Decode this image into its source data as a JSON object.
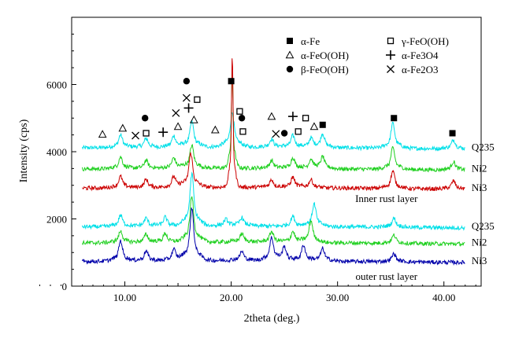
{
  "chart_data": {
    "type": "line",
    "title": "",
    "xlabel": "2theta (deg.)",
    "ylabel": "Intensity (cps)",
    "xlim": [
      5,
      43.5
    ],
    "ylim": [
      0,
      8000
    ],
    "x_ticks": [
      10,
      20,
      30,
      40
    ],
    "x_tick_labels": [
      "10.00",
      "20.00",
      "30.00",
      "40.00"
    ],
    "y_ticks": [
      0,
      2000,
      4000,
      6000
    ],
    "y_tick_labels": [
      "0",
      "2000",
      "4000",
      "6000"
    ],
    "grid": false,
    "legend_position": "top-right",
    "legend": [
      {
        "symbol": "filled-square",
        "label": "α-Fe"
      },
      {
        "symbol": "open-triangle",
        "label": "α-FeO(OH)"
      },
      {
        "symbol": "filled-circle",
        "label": "β-FeO(OH)"
      },
      {
        "symbol": "open-square",
        "label": "γ-FeO(OH)"
      },
      {
        "symbol": "plus",
        "label": "α-Fe3O4"
      },
      {
        "symbol": "cross",
        "label": "α-Fe2O3"
      }
    ],
    "group_labels": [
      {
        "text": "Inner rust layer",
        "x": 34.6,
        "y": 2620
      },
      {
        "text": "outer rust layer",
        "x": 34.6,
        "y": 300
      }
    ],
    "series": [
      {
        "name": "Q235",
        "layer": "inner",
        "color": "#00e0e8",
        "baseline": 4150,
        "peaks": [
          [
            9.6,
            280
          ],
          [
            12.0,
            200
          ],
          [
            14.6,
            250
          ],
          [
            16.3,
            560
          ],
          [
            20.1,
            750
          ],
          [
            23.8,
            180
          ],
          [
            25.8,
            260
          ],
          [
            27.5,
            200
          ],
          [
            28.6,
            300
          ],
          [
            35.2,
            550
          ],
          [
            40.9,
            200
          ]
        ]
      },
      {
        "name": "Ni2",
        "layer": "inner",
        "color": "#20d020",
        "baseline": 3520,
        "peaks": [
          [
            9.6,
            260
          ],
          [
            12.0,
            180
          ],
          [
            14.6,
            230
          ],
          [
            16.3,
            500
          ],
          [
            20.1,
            2200
          ],
          [
            23.8,
            170
          ],
          [
            25.8,
            240
          ],
          [
            27.5,
            200
          ],
          [
            28.6,
            260
          ],
          [
            35.2,
            470
          ],
          [
            40.9,
            180
          ]
        ]
      },
      {
        "name": "Ni3",
        "layer": "inner",
        "color": "#cc0000",
        "baseline": 2950,
        "peaks": [
          [
            9.6,
            250
          ],
          [
            12.0,
            180
          ],
          [
            14.6,
            240
          ],
          [
            16.2,
            750
          ],
          [
            20.1,
            2850
          ],
          [
            23.8,
            170
          ],
          [
            25.8,
            230
          ],
          [
            27.5,
            180
          ],
          [
            35.2,
            380
          ],
          [
            40.9,
            180
          ]
        ]
      },
      {
        "name": "Q235",
        "layer": "outer",
        "color": "#00e0e8",
        "baseline": 1800,
        "peaks": [
          [
            9.6,
            250
          ],
          [
            12.0,
            180
          ],
          [
            13.8,
            200
          ],
          [
            16.3,
            1150
          ],
          [
            19.5,
            140
          ],
          [
            21.0,
            180
          ],
          [
            25.8,
            220
          ],
          [
            27.8,
            500
          ],
          [
            35.3,
            200
          ]
        ]
      },
      {
        "name": "Ni2",
        "layer": "outer",
        "color": "#20d020",
        "baseline": 1320,
        "peaks": [
          [
            9.6,
            250
          ],
          [
            12.0,
            180
          ],
          [
            13.8,
            200
          ],
          [
            16.3,
            1000
          ],
          [
            21.0,
            180
          ],
          [
            23.8,
            240
          ],
          [
            25.8,
            240
          ],
          [
            27.5,
            480
          ],
          [
            35.3,
            180
          ]
        ]
      },
      {
        "name": "Ni3",
        "layer": "outer",
        "color": "#0000aa",
        "baseline": 770,
        "peaks": [
          [
            9.6,
            450
          ],
          [
            12.0,
            220
          ],
          [
            14.6,
            250
          ],
          [
            16.3,
            1150
          ],
          [
            21.0,
            200
          ],
          [
            23.8,
            500
          ],
          [
            25.0,
            300
          ],
          [
            26.8,
            350
          ],
          [
            28.6,
            280
          ],
          [
            35.3,
            180
          ]
        ]
      }
    ],
    "markers": [
      {
        "symbol": "filled-square",
        "x": 20.0,
        "y": 6100
      },
      {
        "symbol": "filled-square",
        "x": 28.6,
        "y": 4800
      },
      {
        "symbol": "filled-square",
        "x": 35.3,
        "y": 5000
      },
      {
        "symbol": "filled-square",
        "x": 40.8,
        "y": 4550
      },
      {
        "symbol": "filled-circle",
        "x": 15.8,
        "y": 6100
      },
      {
        "symbol": "filled-circle",
        "x": 11.9,
        "y": 5000
      },
      {
        "symbol": "filled-circle",
        "x": 21.0,
        "y": 5000
      },
      {
        "symbol": "filled-circle",
        "x": 25.0,
        "y": 4550
      },
      {
        "symbol": "open-triangle",
        "x": 7.9,
        "y": 4520
      },
      {
        "symbol": "open-triangle",
        "x": 9.8,
        "y": 4700
      },
      {
        "symbol": "open-triangle",
        "x": 15.0,
        "y": 4750
      },
      {
        "symbol": "open-triangle",
        "x": 16.5,
        "y": 4950
      },
      {
        "symbol": "open-triangle",
        "x": 18.5,
        "y": 4650
      },
      {
        "symbol": "open-triangle",
        "x": 23.8,
        "y": 5050
      },
      {
        "symbol": "open-triangle",
        "x": 27.8,
        "y": 4750
      },
      {
        "symbol": "open-square",
        "x": 12.0,
        "y": 4550
      },
      {
        "symbol": "open-square",
        "x": 16.8,
        "y": 5550
      },
      {
        "symbol": "open-square",
        "x": 20.8,
        "y": 5200
      },
      {
        "symbol": "open-square",
        "x": 21.1,
        "y": 4600
      },
      {
        "symbol": "open-square",
        "x": 26.3,
        "y": 4600
      },
      {
        "symbol": "open-square",
        "x": 27.0,
        "y": 5000
      },
      {
        "symbol": "plus",
        "x": 13.6,
        "y": 4580
      },
      {
        "symbol": "plus",
        "x": 16.0,
        "y": 5300
      },
      {
        "symbol": "plus",
        "x": 25.8,
        "y": 5050
      },
      {
        "symbol": "cross",
        "x": 11.0,
        "y": 4480
      },
      {
        "symbol": "cross",
        "x": 14.8,
        "y": 5150
      },
      {
        "symbol": "cross",
        "x": 15.8,
        "y": 5600
      },
      {
        "symbol": "cross",
        "x": 24.2,
        "y": 4530
      }
    ]
  }
}
